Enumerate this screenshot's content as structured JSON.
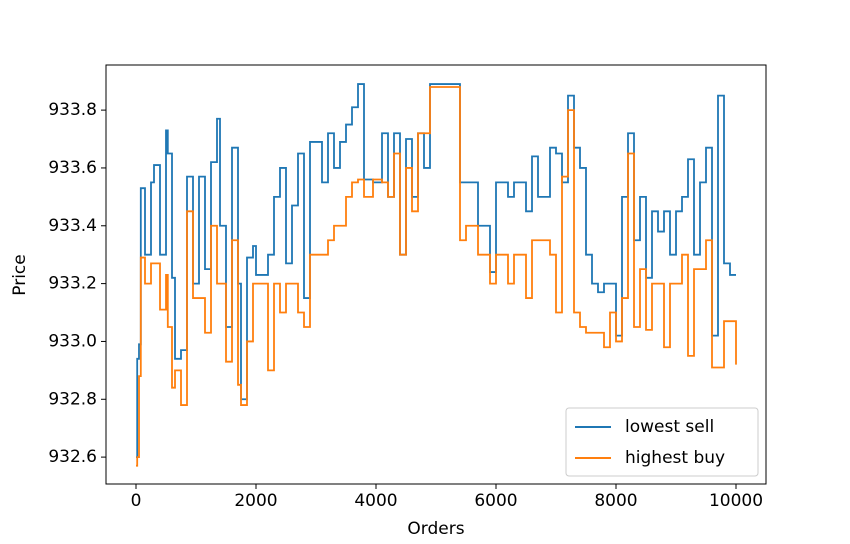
{
  "chart_data": {
    "type": "line",
    "step": true,
    "x_label": "Orders",
    "y_label": "Price",
    "xlim": [
      -500,
      10500
    ],
    "ylim": [
      932.507,
      933.956
    ],
    "xticks": [
      0,
      2000,
      4000,
      6000,
      8000,
      10000
    ],
    "yticks": [
      {
        "value": 932.6,
        "label": "932.6"
      },
      {
        "value": 932.8,
        "label": "932.8"
      },
      {
        "value": 933,
        "label": "933.0"
      },
      {
        "value": 933.2,
        "label": "933.2"
      },
      {
        "value": 933.4,
        "label": "933.4"
      },
      {
        "value": 933.6,
        "label": "933.6"
      },
      {
        "value": 933.8,
        "label": "933.8"
      }
    ],
    "grid": false,
    "legend": "lower right",
    "x": [
      0,
      20,
      50,
      80,
      150,
      250,
      300,
      400,
      500,
      530,
      600,
      650,
      750,
      850,
      950,
      1050,
      1150,
      1250,
      1350,
      1400,
      1500,
      1600,
      1700,
      1750,
      1850,
      1950,
      2000,
      2200,
      2300,
      2400,
      2500,
      2600,
      2700,
      2800,
      2900,
      3100,
      3200,
      3300,
      3400,
      3500,
      3600,
      3700,
      3800,
      3950,
      4100,
      4200,
      4300,
      4400,
      4500,
      4600,
      4700,
      4800,
      4900,
      5400,
      5500,
      5700,
      5900,
      6000,
      6200,
      6300,
      6500,
      6600,
      6700,
      6900,
      7000,
      7100,
      7200,
      7300,
      7400,
      7500,
      7600,
      7700,
      7800,
      7900,
      8000,
      8100,
      8200,
      8300,
      8400,
      8500,
      8600,
      8700,
      8800,
      8900,
      9000,
      9100,
      9200,
      9300,
      9400,
      9500,
      9600,
      9700,
      9800,
      9900,
      10000
    ],
    "series": [
      {
        "name": "lowest sell",
        "color": "#1f77b4",
        "values": [
          932.6,
          932.94,
          932.99,
          933.53,
          933.3,
          933.55,
          933.61,
          933.3,
          933.73,
          933.65,
          933.22,
          932.94,
          932.97,
          933.57,
          933.2,
          933.57,
          933.25,
          933.62,
          933.77,
          933.4,
          933.05,
          933.67,
          933.2,
          932.8,
          933.29,
          933.33,
          933.23,
          933.3,
          933.5,
          933.6,
          933.27,
          933.47,
          933.65,
          933.15,
          933.69,
          933.55,
          933.72,
          933.6,
          933.69,
          933.75,
          933.81,
          933.89,
          933.56,
          933.55,
          933.72,
          933.5,
          933.72,
          933.3,
          933.7,
          933.5,
          933.72,
          933.6,
          933.89,
          933.55,
          933.55,
          933.4,
          933.24,
          933.55,
          933.5,
          933.55,
          933.45,
          933.64,
          933.5,
          933.67,
          933.65,
          933.55,
          933.85,
          933.67,
          933.6,
          933.3,
          933.2,
          933.17,
          933.2,
          933.2,
          933.02,
          933.5,
          933.72,
          933.35,
          933.5,
          933.22,
          933.45,
          933.38,
          933.45,
          933.3,
          933.45,
          933.5,
          933.63,
          933.3,
          933.55,
          933.67,
          933.02,
          933.85,
          933.27,
          933.23,
          933.23
        ]
      },
      {
        "name": "highest buy",
        "color": "#ff7f0e",
        "values": [
          932.57,
          932.6,
          932.88,
          933.29,
          933.2,
          933.27,
          933.27,
          933.11,
          933.23,
          933.05,
          932.84,
          932.9,
          932.78,
          933.45,
          933.15,
          933.15,
          933.03,
          933.4,
          933.2,
          933.2,
          932.93,
          933.35,
          932.85,
          932.78,
          933,
          933.2,
          933.2,
          932.9,
          933.2,
          933.1,
          933.2,
          933.2,
          933.1,
          933.05,
          933.3,
          933.3,
          933.35,
          933.4,
          933.4,
          933.5,
          933.55,
          933.56,
          933.5,
          933.56,
          933.55,
          933.5,
          933.65,
          933.3,
          933.6,
          933.45,
          933.72,
          933.72,
          933.88,
          933.35,
          933.4,
          933.3,
          933.2,
          933.3,
          933.2,
          933.3,
          933.15,
          933.35,
          933.35,
          933.3,
          933.1,
          933.57,
          933.8,
          933.1,
          933.05,
          933.03,
          933.03,
          933.03,
          932.98,
          933.1,
          933,
          933.15,
          933.65,
          933.05,
          933.25,
          933.04,
          933.2,
          933.2,
          932.98,
          933.2,
          933.2,
          933.3,
          932.95,
          933.25,
          933.25,
          933.35,
          932.91,
          932.91,
          933.07,
          933.07,
          932.92
        ]
      }
    ]
  }
}
